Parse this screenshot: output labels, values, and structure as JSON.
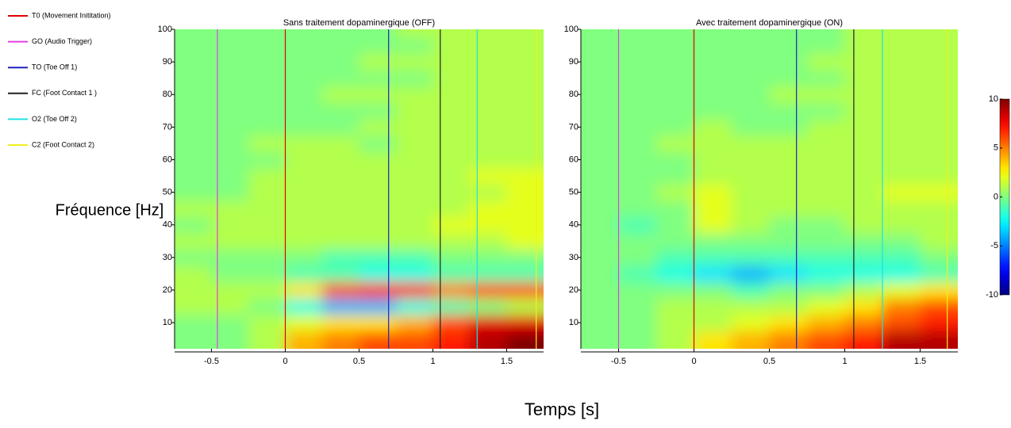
{
  "figure": {
    "xlabel": "Temps [s]",
    "ylabel": "Fréquence [Hz]",
    "legend": [
      {
        "name": "T0 (Movement Inititation)",
        "color": "#e00000"
      },
      {
        "name": "GO (Audio Trigger)",
        "color": "#e040e0"
      },
      {
        "name": "TO (Toe Off 1)",
        "color": "#2020c0"
      },
      {
        "name": "FC (Foot Contact 1 )",
        "color": "#202020"
      },
      {
        "name": "O2 (Toe Off 2)",
        "color": "#20e0e0"
      },
      {
        "name": "C2 (Foot Contact 2)",
        "color": "#f0f020"
      }
    ],
    "colorbar": {
      "colormap": "jet",
      "clim": [
        -10,
        10
      ],
      "ticks": [
        -10,
        -5,
        0,
        5,
        10
      ]
    }
  },
  "chart_data": [
    {
      "type": "heatmap",
      "title": "Sans traitement dopaminergique (OFF)",
      "xlim": [
        -0.75,
        1.75
      ],
      "ylim": [
        2,
        100
      ],
      "xticks": [
        -0.5,
        0,
        0.5,
        1,
        1.5
      ],
      "yticks": [
        10,
        20,
        30,
        40,
        50,
        60,
        70,
        80,
        90,
        100
      ],
      "event_times": [
        0,
        -0.46,
        0.7,
        1.05,
        1.3,
        1.7
      ],
      "x": [
        -0.625,
        -0.375,
        -0.125,
        0.125,
        0.375,
        0.625,
        0.875,
        1.125,
        1.375,
        1.625
      ],
      "y": [
        5,
        10,
        15,
        20,
        25,
        30,
        35,
        40,
        45,
        50,
        55,
        60,
        65,
        70,
        75,
        80,
        85,
        90,
        95,
        100
      ],
      "z": [
        [
          0,
          0,
          1,
          4,
          5,
          6,
          6,
          7,
          9,
          10
        ],
        [
          0,
          0,
          1,
          2,
          3,
          3,
          4,
          6,
          8,
          8
        ],
        [
          1,
          1,
          0,
          -2,
          -4,
          -4,
          -2,
          -1,
          0,
          1
        ],
        [
          1,
          1,
          1,
          3,
          6,
          7,
          7,
          5,
          6,
          6
        ],
        [
          1,
          0,
          0,
          -1,
          -1,
          -2,
          -2,
          -1,
          -1,
          -1
        ],
        [
          0,
          0,
          0,
          0,
          -1,
          -1,
          -1,
          0,
          0,
          0
        ],
        [
          1,
          1,
          1,
          1,
          1,
          1,
          1,
          1,
          1,
          2
        ],
        [
          0,
          1,
          1,
          1,
          1,
          1,
          1,
          2,
          2,
          2
        ],
        [
          1,
          1,
          1,
          1,
          1,
          1,
          1,
          1,
          2,
          2
        ],
        [
          0,
          0,
          1,
          1,
          1,
          1,
          1,
          1,
          1,
          2
        ],
        [
          0,
          0,
          1,
          1,
          1,
          1,
          1,
          1,
          2,
          2
        ],
        [
          0,
          0,
          0,
          1,
          1,
          1,
          1,
          1,
          1,
          1
        ],
        [
          0,
          0,
          1,
          1,
          1,
          0,
          1,
          1,
          1,
          1
        ],
        [
          0,
          0,
          0,
          0,
          0,
          1,
          1,
          1,
          1,
          1
        ],
        [
          0,
          0,
          0,
          0,
          0,
          0,
          1,
          1,
          1,
          1
        ],
        [
          0,
          0,
          0,
          0,
          1,
          1,
          1,
          1,
          1,
          1
        ],
        [
          0,
          0,
          0,
          0,
          0,
          0,
          0,
          1,
          1,
          1
        ],
        [
          0,
          0,
          0,
          0,
          0,
          1,
          1,
          1,
          1,
          1
        ],
        [
          0,
          0,
          0,
          0,
          0,
          0,
          0,
          1,
          1,
          1
        ],
        [
          0,
          0,
          0,
          0,
          0,
          0,
          1,
          1,
          1,
          1
        ]
      ]
    },
    {
      "type": "heatmap",
      "title": "Avec traitement dopaminergique (ON)",
      "xlim": [
        -0.75,
        1.75
      ],
      "ylim": [
        2,
        100
      ],
      "xticks": [
        -0.5,
        0,
        0.5,
        1,
        1.5
      ],
      "yticks": [
        10,
        20,
        30,
        40,
        50,
        60,
        70,
        80,
        90,
        100
      ],
      "event_times": [
        0,
        -0.5,
        0.68,
        1.06,
        1.25,
        1.68
      ],
      "x": [
        -0.625,
        -0.375,
        -0.125,
        0.125,
        0.375,
        0.625,
        0.875,
        1.125,
        1.375,
        1.625
      ],
      "y": [
        5,
        10,
        15,
        20,
        25,
        30,
        35,
        40,
        45,
        50,
        55,
        60,
        65,
        70,
        75,
        80,
        85,
        90,
        95,
        100
      ],
      "z": [
        [
          0,
          0,
          1,
          3,
          4,
          5,
          6,
          7,
          9,
          9
        ],
        [
          0,
          0,
          1,
          1,
          2,
          3,
          4,
          5,
          6,
          7
        ],
        [
          0,
          0,
          1,
          1,
          1,
          1,
          2,
          3,
          5,
          6
        ],
        [
          0,
          0,
          0,
          0,
          -1,
          0,
          0,
          1,
          2,
          3
        ],
        [
          0,
          -1,
          -2,
          -3,
          -4,
          -3,
          -2,
          -2,
          -2,
          -1
        ],
        [
          0,
          0,
          -1,
          -1,
          -1,
          -1,
          -1,
          -1,
          -1,
          0
        ],
        [
          0,
          0,
          0,
          0,
          0,
          0,
          0,
          0,
          0,
          1
        ],
        [
          0,
          -1,
          0,
          2,
          1,
          0,
          0,
          1,
          1,
          1
        ],
        [
          0,
          0,
          0,
          2,
          1,
          1,
          1,
          1,
          1,
          1
        ],
        [
          0,
          0,
          1,
          2,
          1,
          1,
          1,
          1,
          2,
          2
        ],
        [
          0,
          0,
          0,
          1,
          1,
          1,
          1,
          1,
          1,
          1
        ],
        [
          0,
          0,
          0,
          1,
          1,
          1,
          1,
          1,
          1,
          1
        ],
        [
          0,
          0,
          1,
          1,
          1,
          1,
          1,
          1,
          1,
          1
        ],
        [
          0,
          0,
          0,
          1,
          0,
          0,
          1,
          1,
          1,
          1
        ],
        [
          0,
          0,
          0,
          0,
          0,
          0,
          0,
          1,
          1,
          1
        ],
        [
          0,
          0,
          0,
          0,
          0,
          1,
          1,
          1,
          1,
          1
        ],
        [
          0,
          0,
          0,
          0,
          0,
          0,
          0,
          1,
          1,
          1
        ],
        [
          0,
          0,
          0,
          0,
          0,
          0,
          1,
          1,
          1,
          1
        ],
        [
          0,
          0,
          0,
          0,
          0,
          0,
          0,
          1,
          1,
          1
        ],
        [
          0,
          0,
          0,
          0,
          0,
          0,
          0,
          1,
          1,
          1
        ]
      ]
    }
  ]
}
